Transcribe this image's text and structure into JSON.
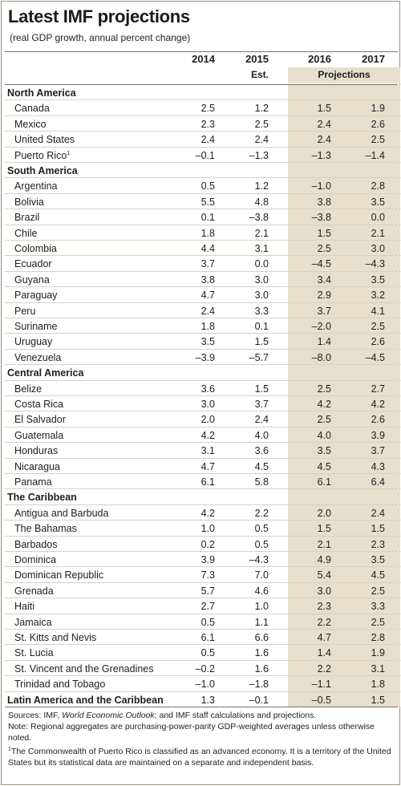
{
  "title": "Latest IMF projections",
  "subtitle": "(real GDP growth, annual percent change)",
  "columns": [
    "2014",
    "2015",
    "2016",
    "2017"
  ],
  "sub_header_2015": "Est.",
  "projections_label": "Projections",
  "groups": [
    {
      "region": "North America",
      "rows": [
        {
          "name": "Canada",
          "values": [
            "2.5",
            "1.2",
            "1.5",
            "1.9"
          ]
        },
        {
          "name": "Mexico",
          "values": [
            "2.3",
            "2.5",
            "2.4",
            "2.6"
          ]
        },
        {
          "name": "United States",
          "values": [
            "2.4",
            "2.4",
            "2.4",
            "2.5"
          ]
        },
        {
          "name": "Puerto Rico",
          "footnote": "1",
          "values": [
            "–0.1",
            "–1.3",
            "–1.3",
            "–1.4"
          ]
        }
      ]
    },
    {
      "region": "South America",
      "rows": [
        {
          "name": "Argentina",
          "values": [
            "0.5",
            "1.2",
            "–1.0",
            "2.8"
          ]
        },
        {
          "name": "Bolivia",
          "values": [
            "5.5",
            "4.8",
            "3.8",
            "3.5"
          ]
        },
        {
          "name": "Brazil",
          "values": [
            "0.1",
            "–3.8",
            "–3.8",
            "0.0"
          ]
        },
        {
          "name": "Chile",
          "values": [
            "1.8",
            "2.1",
            "1.5",
            "2.1"
          ]
        },
        {
          "name": "Colombia",
          "values": [
            "4.4",
            "3.1",
            "2.5",
            "3.0"
          ]
        },
        {
          "name": "Ecuador",
          "values": [
            "3.7",
            "0.0",
            "–4.5",
            "–4.3"
          ]
        },
        {
          "name": "Guyana",
          "values": [
            "3.8",
            "3.0",
            "3.4",
            "3.5"
          ]
        },
        {
          "name": "Paraguay",
          "values": [
            "4.7",
            "3.0",
            "2.9",
            "3.2"
          ]
        },
        {
          "name": "Peru",
          "values": [
            "2.4",
            "3.3",
            "3.7",
            "4.1"
          ]
        },
        {
          "name": "Suriname",
          "values": [
            "1.8",
            "0.1",
            "–2.0",
            "2.5"
          ]
        },
        {
          "name": "Uruguay",
          "values": [
            "3.5",
            "1.5",
            "1.4",
            "2.6"
          ]
        },
        {
          "name": "Venezuela",
          "values": [
            "–3.9",
            "–5.7",
            "–8.0",
            "–4.5"
          ]
        }
      ]
    },
    {
      "region": "Central America",
      "rows": [
        {
          "name": "Belize",
          "values": [
            "3.6",
            "1.5",
            "2.5",
            "2.7"
          ]
        },
        {
          "name": "Costa Rica",
          "values": [
            "3.0",
            "3.7",
            "4.2",
            "4.2"
          ]
        },
        {
          "name": "El Salvador",
          "values": [
            "2.0",
            "2.4",
            "2.5",
            "2.6"
          ]
        },
        {
          "name": "Guatemala",
          "values": [
            "4.2",
            "4.0",
            "4.0",
            "3.9"
          ]
        },
        {
          "name": "Honduras",
          "values": [
            "3.1",
            "3.6",
            "3.5",
            "3.7"
          ]
        },
        {
          "name": "Nicaragua",
          "values": [
            "4.7",
            "4.5",
            "4.5",
            "4.3"
          ]
        },
        {
          "name": "Panama",
          "values": [
            "6.1",
            "5.8",
            "6.1",
            "6.4"
          ]
        }
      ]
    },
    {
      "region": "The Caribbean",
      "rows": [
        {
          "name": "Antigua and Barbuda",
          "values": [
            "4.2",
            "2.2",
            "2.0",
            "2.4"
          ]
        },
        {
          "name": "The Bahamas",
          "values": [
            "1.0",
            "0.5",
            "1.5",
            "1.5"
          ]
        },
        {
          "name": "Barbados",
          "values": [
            "0.2",
            "0.5",
            "2.1",
            "2.3"
          ]
        },
        {
          "name": "Dominica",
          "values": [
            "3.9",
            "–4.3",
            "4.9",
            "3.5"
          ]
        },
        {
          "name": "Dominican Republic",
          "values": [
            "7.3",
            "7.0",
            "5.4",
            "4.5"
          ]
        },
        {
          "name": "Grenada",
          "values": [
            "5.7",
            "4.6",
            "3.0",
            "2.5"
          ]
        },
        {
          "name": "Haiti",
          "values": [
            "2.7",
            "1.0",
            "2.3",
            "3.3"
          ]
        },
        {
          "name": "Jamaica",
          "values": [
            "0.5",
            "1.1",
            "2.2",
            "2.5"
          ]
        },
        {
          "name": "St. Kitts and Nevis",
          "values": [
            "6.1",
            "6.6",
            "4.7",
            "2.8"
          ]
        },
        {
          "name": "St. Lucia",
          "values": [
            "0.5",
            "1.6",
            "1.4",
            "1.9"
          ]
        },
        {
          "name": "St. Vincent and the Grenadines",
          "values": [
            "–0.2",
            "1.6",
            "2.2",
            "3.1"
          ]
        },
        {
          "name": "Trinidad and Tobago",
          "values": [
            "–1.0",
            "–1.8",
            "–1.1",
            "1.8"
          ]
        }
      ]
    }
  ],
  "total": {
    "name": "Latin America and the Caribbean",
    "values": [
      "1.3",
      "–0.1",
      "–0.5",
      "1.5"
    ]
  },
  "notes": {
    "sources_prefix": "Sources: IMF, ",
    "sources_italic": "World Economic Outlook",
    "sources_suffix": "; and IMF staff calculations and projections.",
    "note": "Note: Regional aggregates are purchasing-power-parity GDP-weighted averages unless otherwise noted.",
    "footnote_marker": "1",
    "footnote": "The Commonwealth of Puerto Rico is classified as an advanced economy. It is a territory of the United States but its statistical data are maintained on a separate and independent basis."
  },
  "colors": {
    "projection_shade": "#e5dfcc",
    "row_rule": "#d7d1bf",
    "border": "#9a9380"
  }
}
